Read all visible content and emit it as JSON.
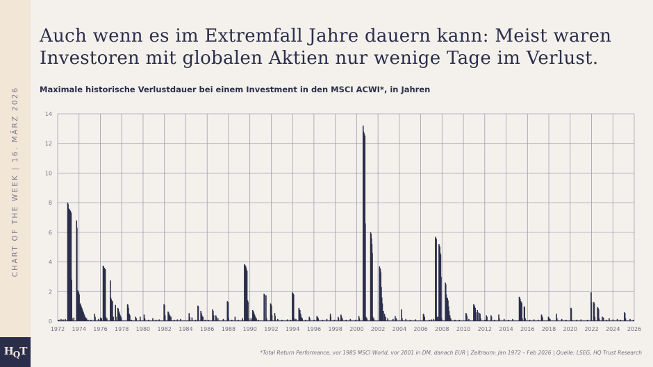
{
  "sidebar": {
    "vertical_text": "CHART OF THE WEEK | 16. MÄRZ 2026",
    "logo_text": "HQT"
  },
  "header": {
    "title": "Auch wenn es im Extremfall Jahre dauern kann: Meist waren Investoren mit globalen Aktien nur wenige Tage im Verlust.",
    "subtitle": "Maximale historische Verlustdauer bei einem Investment in den MSCI ACWI*, in Jahren"
  },
  "footer": "*Total Return Performance, vor 1985 MSCI World, vor 2001 in DM, danach EUR | Zeitraum: Jan 1972 – Feb 2026 | Quelle: LSEG, HQ Trust Research",
  "colors": {
    "bars": "#2b2e4a",
    "grid": "#9c9eb3",
    "background": "#f4f1ec",
    "sidebar": "#f2e6d7"
  },
  "chart_data": {
    "type": "bar",
    "title": "Maximale historische Verlustdauer bei einem Investment in den MSCI ACWI*, in Jahren",
    "xlabel": "",
    "ylabel": "",
    "xlim": [
      1972,
      2026
    ],
    "ylim": [
      0,
      14
    ],
    "x_ticks": [
      "1972",
      "1974",
      "1976",
      "1978",
      "1980",
      "1982",
      "1984",
      "1986",
      "1988",
      "1990",
      "1992",
      "1994",
      "1996",
      "1998",
      "2000",
      "2002",
      "2004",
      "2006",
      "2008",
      "2010",
      "2012",
      "2014",
      "2016",
      "2018",
      "2020",
      "2022",
      "2024",
      "2026"
    ],
    "y_ticks": [
      "0",
      "2",
      "4",
      "6",
      "8",
      "10",
      "12",
      "14"
    ],
    "grid": true,
    "points": [
      [
        1972.1,
        0.1
      ],
      [
        1972.3,
        0.15
      ],
      [
        1972.5,
        0.12
      ],
      [
        1972.7,
        0.15
      ],
      [
        1972.93,
        8.0
      ],
      [
        1972.97,
        7.9
      ],
      [
        1973.01,
        7.6
      ],
      [
        1973.05,
        7.6
      ],
      [
        1973.09,
        7.55
      ],
      [
        1973.13,
        7.5
      ],
      [
        1973.17,
        7.45
      ],
      [
        1973.21,
        7.4
      ],
      [
        1973.25,
        7.3
      ],
      [
        1973.3,
        2.8
      ],
      [
        1973.35,
        0.2
      ],
      [
        1973.5,
        0.25
      ],
      [
        1973.76,
        6.8
      ],
      [
        1973.8,
        6.3
      ],
      [
        1973.85,
        2.1
      ],
      [
        1973.89,
        2.0
      ],
      [
        1973.93,
        2.0
      ],
      [
        1973.97,
        1.9
      ],
      [
        1974.01,
        1.8
      ],
      [
        1974.05,
        1.2
      ],
      [
        1974.1,
        1.2
      ],
      [
        1974.15,
        1.1
      ],
      [
        1974.2,
        1.0
      ],
      [
        1974.25,
        0.9
      ],
      [
        1974.3,
        0.8
      ],
      [
        1974.35,
        0.7
      ],
      [
        1974.4,
        0.6
      ],
      [
        1974.45,
        0.5
      ],
      [
        1974.5,
        0.4
      ],
      [
        1974.55,
        0.3
      ],
      [
        1974.6,
        0.25
      ],
      [
        1974.7,
        0.2
      ],
      [
        1974.84,
        0.1
      ],
      [
        1975.1,
        0.1
      ],
      [
        1975.45,
        0.5
      ],
      [
        1975.5,
        0.3
      ],
      [
        1975.8,
        0.15
      ],
      [
        1976.0,
        0.25
      ],
      [
        1976.1,
        0.2
      ],
      [
        1976.25,
        3.75
      ],
      [
        1976.29,
        3.7
      ],
      [
        1976.33,
        3.6
      ],
      [
        1976.37,
        3.6
      ],
      [
        1976.41,
        3.5
      ],
      [
        1976.45,
        3.5
      ],
      [
        1976.5,
        0.3
      ],
      [
        1976.6,
        0.2
      ],
      [
        1976.92,
        2.75
      ],
      [
        1976.96,
        1.6
      ],
      [
        1977.0,
        1.5
      ],
      [
        1977.05,
        1.4
      ],
      [
        1977.12,
        1.35
      ],
      [
        1977.2,
        0.3
      ],
      [
        1977.4,
        1.1
      ],
      [
        1977.45,
        0.3
      ],
      [
        1977.62,
        0.9
      ],
      [
        1977.66,
        0.85
      ],
      [
        1977.7,
        0.7
      ],
      [
        1977.75,
        0.6
      ],
      [
        1977.8,
        0.5
      ],
      [
        1977.85,
        0.4
      ],
      [
        1977.9,
        0.3
      ],
      [
        1977.95,
        0.2
      ],
      [
        1978.53,
        1.15
      ],
      [
        1978.57,
        1.1
      ],
      [
        1978.62,
        0.9
      ],
      [
        1978.7,
        0.5
      ],
      [
        1978.75,
        0.4
      ],
      [
        1978.9,
        0.1
      ],
      [
        1979.29,
        0.3
      ],
      [
        1979.35,
        0.2
      ],
      [
        1979.72,
        0.3
      ],
      [
        1980.09,
        0.45
      ],
      [
        1980.15,
        0.2
      ],
      [
        1980.5,
        0.1
      ],
      [
        1980.9,
        0.2
      ],
      [
        1981.2,
        0.1
      ],
      [
        1981.5,
        0.12
      ],
      [
        1981.95,
        1.15
      ],
      [
        1982.0,
        1.1
      ],
      [
        1982.05,
        0.4
      ],
      [
        1982.33,
        0.65
      ],
      [
        1982.37,
        0.6
      ],
      [
        1982.42,
        0.5
      ],
      [
        1982.5,
        0.4
      ],
      [
        1982.6,
        0.3
      ],
      [
        1982.9,
        0.1
      ],
      [
        1983.2,
        0.12
      ],
      [
        1983.5,
        0.15
      ],
      [
        1984.3,
        0.55
      ],
      [
        1984.35,
        0.3
      ],
      [
        1984.57,
        0.25
      ],
      [
        1984.9,
        0.1
      ],
      [
        1985.12,
        1.05
      ],
      [
        1985.16,
        1.0
      ],
      [
        1985.4,
        0.7
      ],
      [
        1985.45,
        0.55
      ],
      [
        1985.5,
        0.4
      ],
      [
        1985.6,
        0.3
      ],
      [
        1985.8,
        0.1
      ],
      [
        1986.1,
        0.1
      ],
      [
        1986.5,
        0.8
      ],
      [
        1986.55,
        0.7
      ],
      [
        1986.6,
        0.4
      ],
      [
        1986.8,
        0.4
      ],
      [
        1986.85,
        0.3
      ],
      [
        1987.0,
        0.2
      ],
      [
        1987.5,
        0.15
      ],
      [
        1987.88,
        1.35
      ],
      [
        1987.92,
        1.3
      ],
      [
        1987.96,
        1.25
      ],
      [
        1988.0,
        0.2
      ],
      [
        1988.3,
        0.1
      ],
      [
        1988.6,
        0.3
      ],
      [
        1988.9,
        0.1
      ],
      [
        1989.3,
        0.2
      ],
      [
        1989.48,
        3.85
      ],
      [
        1989.52,
        3.8
      ],
      [
        1989.56,
        3.75
      ],
      [
        1989.6,
        3.7
      ],
      [
        1989.64,
        3.6
      ],
      [
        1989.68,
        3.45
      ],
      [
        1989.72,
        3.4
      ],
      [
        1989.78,
        1.4
      ],
      [
        1989.82,
        1.3
      ],
      [
        1989.87,
        0.2
      ],
      [
        1990.1,
        0.2
      ],
      [
        1990.25,
        0.75
      ],
      [
        1990.3,
        0.7
      ],
      [
        1990.35,
        0.6
      ],
      [
        1990.4,
        0.5
      ],
      [
        1990.45,
        0.4
      ],
      [
        1990.5,
        0.3
      ],
      [
        1990.6,
        0.2
      ],
      [
        1990.8,
        0.1
      ],
      [
        1991.32,
        1.85
      ],
      [
        1991.36,
        1.8
      ],
      [
        1991.5,
        1.75
      ],
      [
        1991.55,
        0.2
      ],
      [
        1991.93,
        1.2
      ],
      [
        1991.97,
        1.15
      ],
      [
        1992.02,
        1.05
      ],
      [
        1992.06,
        0.4
      ],
      [
        1992.32,
        0.55
      ],
      [
        1992.36,
        0.35
      ],
      [
        1992.6,
        0.15
      ],
      [
        1993.0,
        0.1
      ],
      [
        1993.5,
        0.12
      ],
      [
        1993.8,
        0.1
      ],
      [
        1993.97,
        1.95
      ],
      [
        1994.01,
        1.9
      ],
      [
        1994.05,
        1.85
      ],
      [
        1994.09,
        1.8
      ],
      [
        1994.14,
        0.2
      ],
      [
        1994.3,
        0.15
      ],
      [
        1994.58,
        0.9
      ],
      [
        1994.62,
        0.8
      ],
      [
        1994.68,
        0.75
      ],
      [
        1994.75,
        0.5
      ],
      [
        1994.8,
        0.3
      ],
      [
        1994.9,
        0.2
      ],
      [
        1995.2,
        0.1
      ],
      [
        1995.55,
        0.3
      ],
      [
        1995.6,
        0.2
      ],
      [
        1996.0,
        0.1
      ],
      [
        1996.27,
        0.35
      ],
      [
        1996.32,
        0.3
      ],
      [
        1996.4,
        0.2
      ],
      [
        1996.8,
        0.1
      ],
      [
        1997.2,
        0.15
      ],
      [
        1997.53,
        0.5
      ],
      [
        1997.57,
        0.3
      ],
      [
        1997.9,
        0.1
      ],
      [
        1998.26,
        0.3
      ],
      [
        1998.3,
        0.2
      ],
      [
        1998.52,
        0.45
      ],
      [
        1998.56,
        0.35
      ],
      [
        1998.65,
        0.2
      ],
      [
        1999.0,
        0.1
      ],
      [
        1999.4,
        0.15
      ],
      [
        1999.9,
        0.1
      ],
      [
        2000.2,
        0.35
      ],
      [
        2000.25,
        0.2
      ],
      [
        2000.6,
        13.2
      ],
      [
        2000.64,
        12.8
      ],
      [
        2000.68,
        12.7
      ],
      [
        2000.72,
        12.6
      ],
      [
        2000.76,
        12.5
      ],
      [
        2000.8,
        6.6
      ],
      [
        2000.86,
        0.3
      ],
      [
        2000.95,
        0.2
      ],
      [
        2001.3,
        6.0
      ],
      [
        2001.34,
        5.9
      ],
      [
        2001.38,
        5.6
      ],
      [
        2001.42,
        5.2
      ],
      [
        2001.46,
        4.6
      ],
      [
        2001.5,
        0.3
      ],
      [
        2001.6,
        0.2
      ],
      [
        2002.13,
        3.7
      ],
      [
        2002.17,
        3.6
      ],
      [
        2002.21,
        3.5
      ],
      [
        2002.25,
        3.3
      ],
      [
        2002.3,
        2.3
      ],
      [
        2002.35,
        1.6
      ],
      [
        2002.4,
        1.2
      ],
      [
        2002.5,
        0.7
      ],
      [
        2002.6,
        0.5
      ],
      [
        2002.7,
        0.3
      ],
      [
        2002.9,
        0.2
      ],
      [
        2003.4,
        0.15
      ],
      [
        2003.6,
        0.35
      ],
      [
        2003.7,
        0.2
      ],
      [
        2004.2,
        0.8
      ],
      [
        2004.25,
        0.2
      ],
      [
        2004.6,
        0.15
      ],
      [
        2005.0,
        0.1
      ],
      [
        2005.5,
        0.12
      ],
      [
        2006.24,
        0.5
      ],
      [
        2006.28,
        0.45
      ],
      [
        2006.35,
        0.3
      ],
      [
        2006.8,
        0.1
      ],
      [
        2007.0,
        0.12
      ],
      [
        2007.2,
        0.15
      ],
      [
        2007.37,
        5.7
      ],
      [
        2007.41,
        5.6
      ],
      [
        2007.45,
        5.55
      ],
      [
        2007.5,
        0.3
      ],
      [
        2007.6,
        0.3
      ],
      [
        2007.7,
        5.2
      ],
      [
        2007.74,
        5.1
      ],
      [
        2007.78,
        5.0
      ],
      [
        2007.82,
        4.6
      ],
      [
        2007.86,
        4.5
      ],
      [
        2007.9,
        3.0
      ],
      [
        2007.95,
        0.2
      ],
      [
        2008.3,
        2.6
      ],
      [
        2008.34,
        2.5
      ],
      [
        2008.38,
        1.8
      ],
      [
        2008.45,
        1.6
      ],
      [
        2008.5,
        1.55
      ],
      [
        2008.55,
        1.4
      ],
      [
        2008.6,
        1.0
      ],
      [
        2008.65,
        0.7
      ],
      [
        2008.72,
        0.4
      ],
      [
        2008.8,
        0.2
      ],
      [
        2009.2,
        0.1
      ],
      [
        2009.6,
        0.1
      ],
      [
        2010.23,
        0.55
      ],
      [
        2010.27,
        0.5
      ],
      [
        2010.32,
        0.35
      ],
      [
        2010.5,
        0.15
      ],
      [
        2010.95,
        1.15
      ],
      [
        2010.99,
        1.1
      ],
      [
        2011.04,
        1.0
      ],
      [
        2011.1,
        0.9
      ],
      [
        2011.15,
        0.6
      ],
      [
        2011.3,
        0.75
      ],
      [
        2011.35,
        0.6
      ],
      [
        2011.5,
        0.55
      ],
      [
        2011.55,
        0.5
      ],
      [
        2011.6,
        0.2
      ],
      [
        2012.0,
        0.1
      ],
      [
        2012.14,
        0.4
      ],
      [
        2012.2,
        0.3
      ],
      [
        2012.58,
        0.4
      ],
      [
        2012.62,
        0.3
      ],
      [
        2012.9,
        0.1
      ],
      [
        2013.3,
        0.45
      ],
      [
        2013.35,
        0.2
      ],
      [
        2013.8,
        0.15
      ],
      [
        2014.2,
        0.1
      ],
      [
        2014.6,
        0.15
      ],
      [
        2015.22,
        1.65
      ],
      [
        2015.26,
        1.6
      ],
      [
        2015.3,
        1.5
      ],
      [
        2015.36,
        1.35
      ],
      [
        2015.42,
        1.3
      ],
      [
        2015.46,
        1.2
      ],
      [
        2015.5,
        0.2
      ],
      [
        2015.68,
        1.0
      ],
      [
        2015.72,
        0.95
      ],
      [
        2015.78,
        0.2
      ],
      [
        2016.2,
        0.1
      ],
      [
        2016.6,
        0.12
      ],
      [
        2017.0,
        0.1
      ],
      [
        2017.3,
        0.45
      ],
      [
        2017.35,
        0.35
      ],
      [
        2017.4,
        0.25
      ],
      [
        2017.95,
        0.3
      ],
      [
        2018.0,
        0.25
      ],
      [
        2018.1,
        0.15
      ],
      [
        2018.7,
        0.5
      ],
      [
        2018.75,
        0.2
      ],
      [
        2019.2,
        0.15
      ],
      [
        2019.6,
        0.1
      ],
      [
        2020.06,
        0.9
      ],
      [
        2020.1,
        0.85
      ],
      [
        2020.15,
        0.1
      ],
      [
        2020.6,
        0.1
      ],
      [
        2021.0,
        0.12
      ],
      [
        2021.6,
        0.1
      ],
      [
        2021.95,
        1.95
      ],
      [
        2021.99,
        1.3
      ],
      [
        2022.2,
        1.3
      ],
      [
        2022.25,
        1.2
      ],
      [
        2022.3,
        0.3
      ],
      [
        2022.55,
        0.95
      ],
      [
        2022.6,
        0.9
      ],
      [
        2022.65,
        0.8
      ],
      [
        2022.7,
        0.2
      ],
      [
        2023.0,
        0.3
      ],
      [
        2023.1,
        0.25
      ],
      [
        2023.4,
        0.1
      ],
      [
        2023.64,
        0.2
      ],
      [
        2024.0,
        0.12
      ],
      [
        2024.4,
        0.15
      ],
      [
        2024.7,
        0.1
      ],
      [
        2025.07,
        0.6
      ],
      [
        2025.12,
        0.55
      ],
      [
        2025.17,
        0.2
      ],
      [
        2025.6,
        0.15
      ],
      [
        2025.9,
        0.1
      ]
    ]
  }
}
